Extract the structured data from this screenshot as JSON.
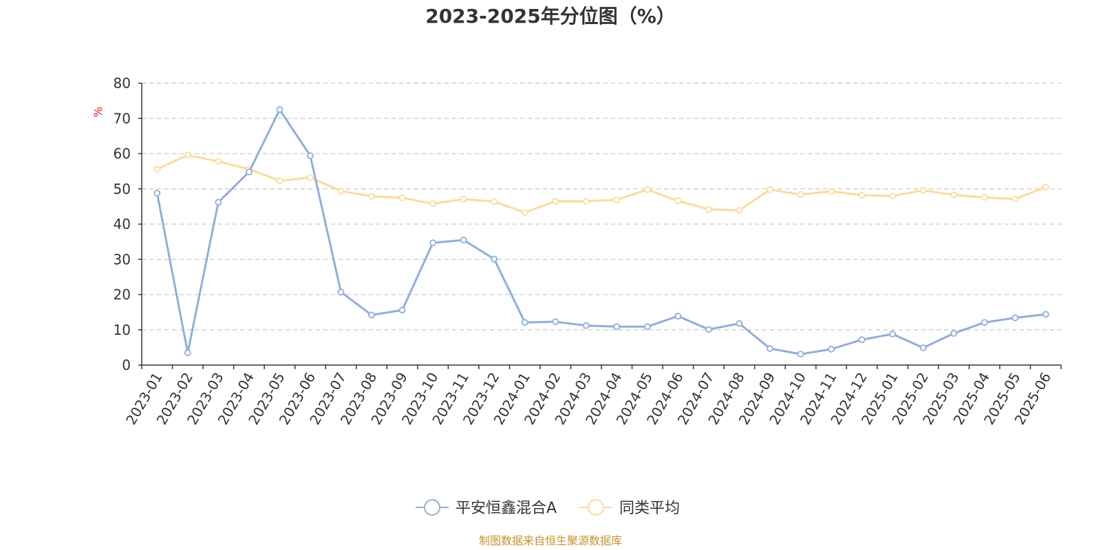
{
  "chart_data": {
    "type": "line",
    "title": "2023-2025年分位图（%）",
    "ylabel": "%",
    "ylim": [
      0,
      80
    ],
    "yticks": [
      0,
      10,
      20,
      30,
      40,
      50,
      60,
      70,
      80
    ],
    "grid": true,
    "legend_position": "bottom-center",
    "categories": [
      "2023-01",
      "2023-02",
      "2023-03",
      "2023-04",
      "2023-05",
      "2023-06",
      "2023-07",
      "2023-08",
      "2023-09",
      "2023-10",
      "2023-11",
      "2023-12",
      "2024-01",
      "2024-02",
      "2024-03",
      "2024-04",
      "2024-05",
      "2024-06",
      "2024-07",
      "2024-08",
      "2024-09",
      "2024-10",
      "2024-11",
      "2024-12",
      "2025-01",
      "2025-02",
      "2025-03",
      "2025-04",
      "2025-05",
      "2025-06"
    ],
    "series": [
      {
        "name": "平安恒鑫混合A",
        "color": "#8eaedc",
        "values": [
          48.8,
          3.5,
          46.2,
          54.8,
          72.5,
          59.4,
          20.7,
          14.2,
          15.6,
          34.7,
          35.5,
          30.1,
          12.1,
          12.3,
          11.2,
          10.9,
          10.9,
          13.9,
          10.1,
          11.8,
          4.7,
          3.1,
          4.5,
          7.2,
          8.8,
          4.9,
          9.0,
          12.1,
          13.4,
          14.4
        ]
      },
      {
        "name": "同类平均",
        "color": "#fddb97",
        "values": [
          55.6,
          59.6,
          57.8,
          55.6,
          52.3,
          53.2,
          49.4,
          47.9,
          47.5,
          45.8,
          47.1,
          46.4,
          43.3,
          46.5,
          46.5,
          46.9,
          49.8,
          46.6,
          44.2,
          43.9,
          49.8,
          48.4,
          49.3,
          48.2,
          48.0,
          49.6,
          48.3,
          47.6,
          47.1,
          50.5
        ]
      }
    ]
  },
  "source_text": "制图数据来自恒生聚源数据库"
}
